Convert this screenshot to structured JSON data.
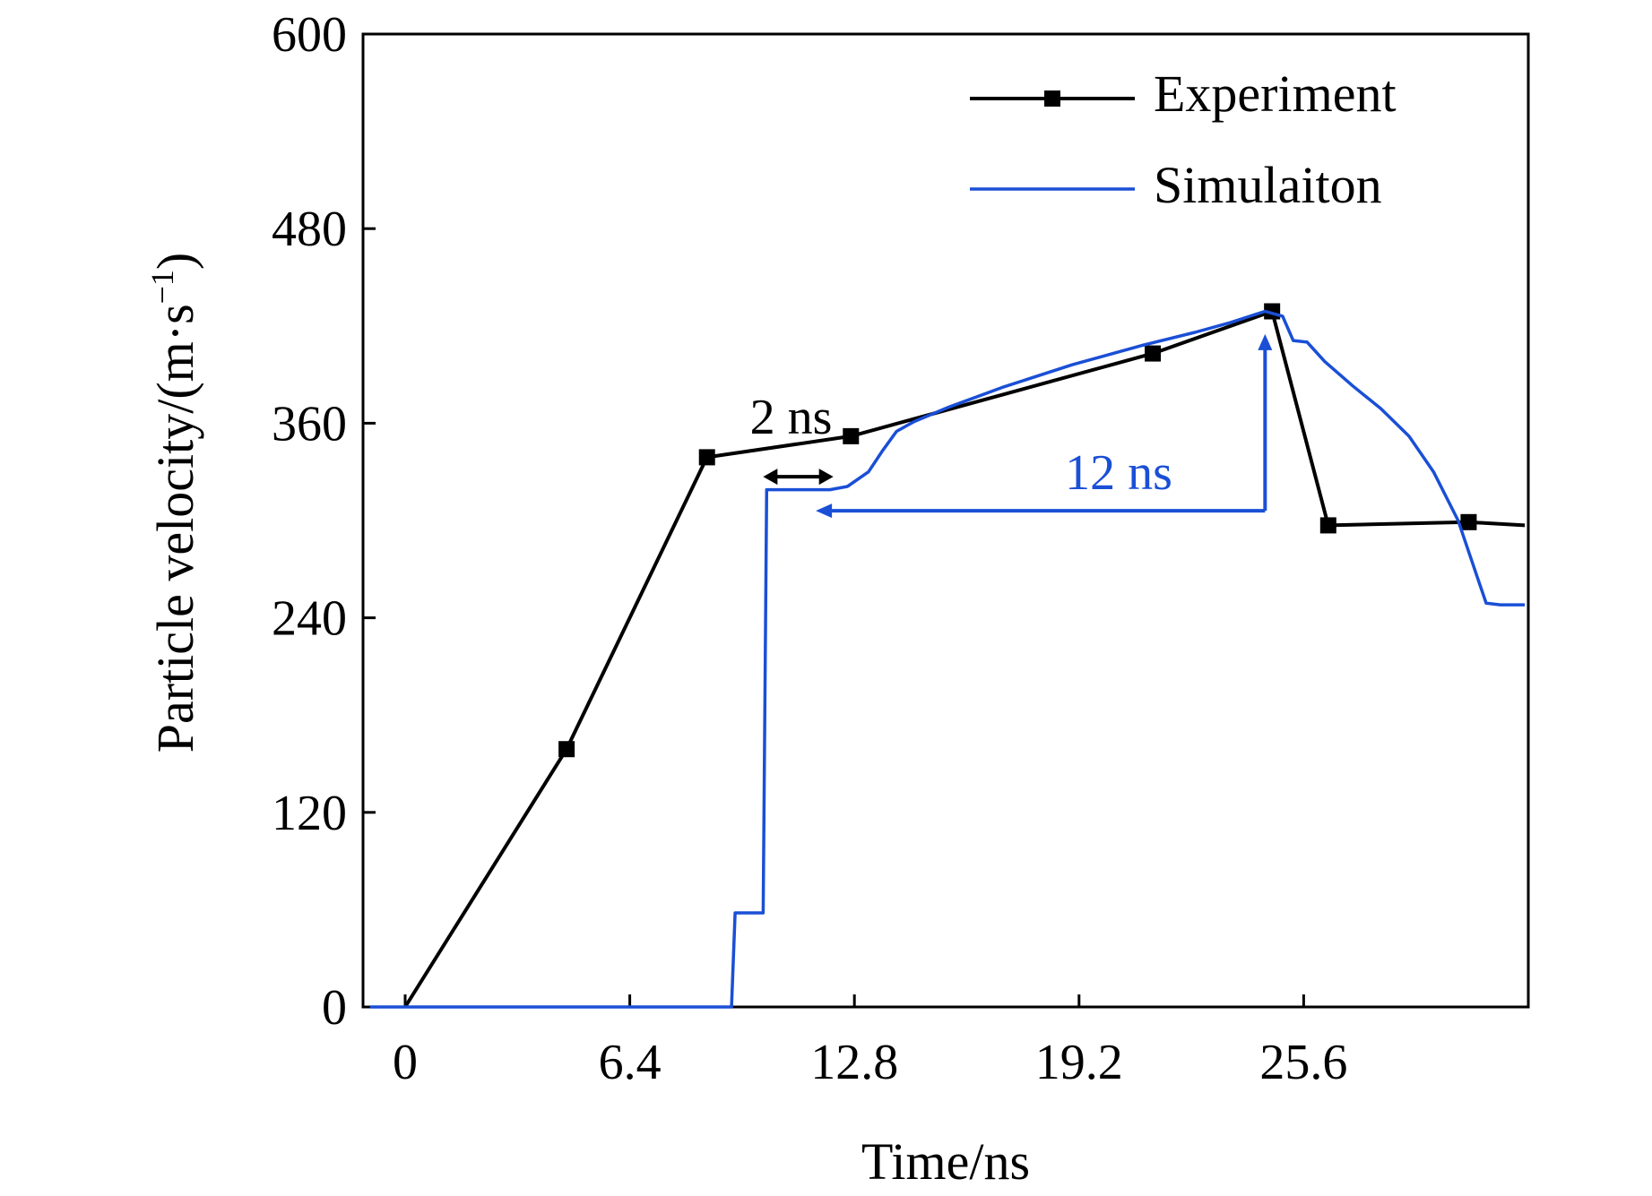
{
  "chart_data": {
    "type": "line",
    "xlabel": "Time/ns",
    "ylabel": "Particle velocity/(m·s",
    "ylabel_sup": "−1",
    "ylabel_close": ")",
    "xlim": [
      -1.2,
      32.0
    ],
    "ylim": [
      0,
      600
    ],
    "xticks": [
      0,
      6.4,
      12.8,
      19.2,
      25.6
    ],
    "xtick_labels": [
      "0",
      "6.4",
      "12.8",
      "19.2",
      "25.6"
    ],
    "yticks": [
      0,
      120,
      240,
      360,
      480,
      600
    ],
    "ytick_labels": [
      "0",
      "120",
      "240",
      "360",
      "480",
      "600"
    ],
    "grid": false,
    "legend_position": "top-right",
    "series": [
      {
        "name": "Experiment",
        "color": "#000000",
        "marker": "square",
        "points": [
          [
            0,
            0
          ],
          [
            4.6,
            159
          ],
          [
            8.6,
            339
          ],
          [
            12.7,
            352
          ],
          [
            21.3,
            403
          ],
          [
            24.7,
            429
          ],
          [
            26.3,
            297
          ],
          [
            30.3,
            299
          ],
          [
            31.9,
            297
          ]
        ]
      },
      {
        "name": "Simulaiton",
        "color": "#1a4fd6",
        "marker": "none",
        "points": [
          [
            -1.0,
            0
          ],
          [
            9.3,
            0
          ],
          [
            9.4,
            58
          ],
          [
            10.2,
            58
          ],
          [
            10.3,
            319
          ],
          [
            12.1,
            319
          ],
          [
            12.6,
            321
          ],
          [
            13.2,
            330
          ],
          [
            13.6,
            343
          ],
          [
            14.0,
            355
          ],
          [
            14.5,
            361
          ],
          [
            15.5,
            370
          ],
          [
            17.0,
            382
          ],
          [
            19.0,
            396
          ],
          [
            21.0,
            408
          ],
          [
            22.5,
            416
          ],
          [
            23.5,
            422
          ],
          [
            24.5,
            429
          ],
          [
            25.0,
            426
          ],
          [
            25.3,
            411
          ],
          [
            25.7,
            410
          ],
          [
            26.2,
            398
          ],
          [
            27.0,
            383
          ],
          [
            27.8,
            369
          ],
          [
            28.6,
            352
          ],
          [
            29.3,
            330
          ],
          [
            30.0,
            300
          ],
          [
            30.5,
            268
          ],
          [
            30.8,
            249
          ],
          [
            31.2,
            248
          ],
          [
            31.9,
            248
          ]
        ]
      }
    ],
    "annotations": [
      {
        "text": "2 ns",
        "color": "#000000",
        "arrow_from": [
          10.2,
          327
        ],
        "arrow_to": [
          12.2,
          327
        ]
      },
      {
        "text": "12 ns",
        "color": "#1a4fd6",
        "arrow_up_from": [
          24.5,
          306
        ],
        "arrow_up_to": [
          24.5,
          415
        ],
        "arrow_left_from": [
          24.5,
          306
        ],
        "arrow_left_to": [
          11.7,
          306
        ]
      }
    ]
  }
}
